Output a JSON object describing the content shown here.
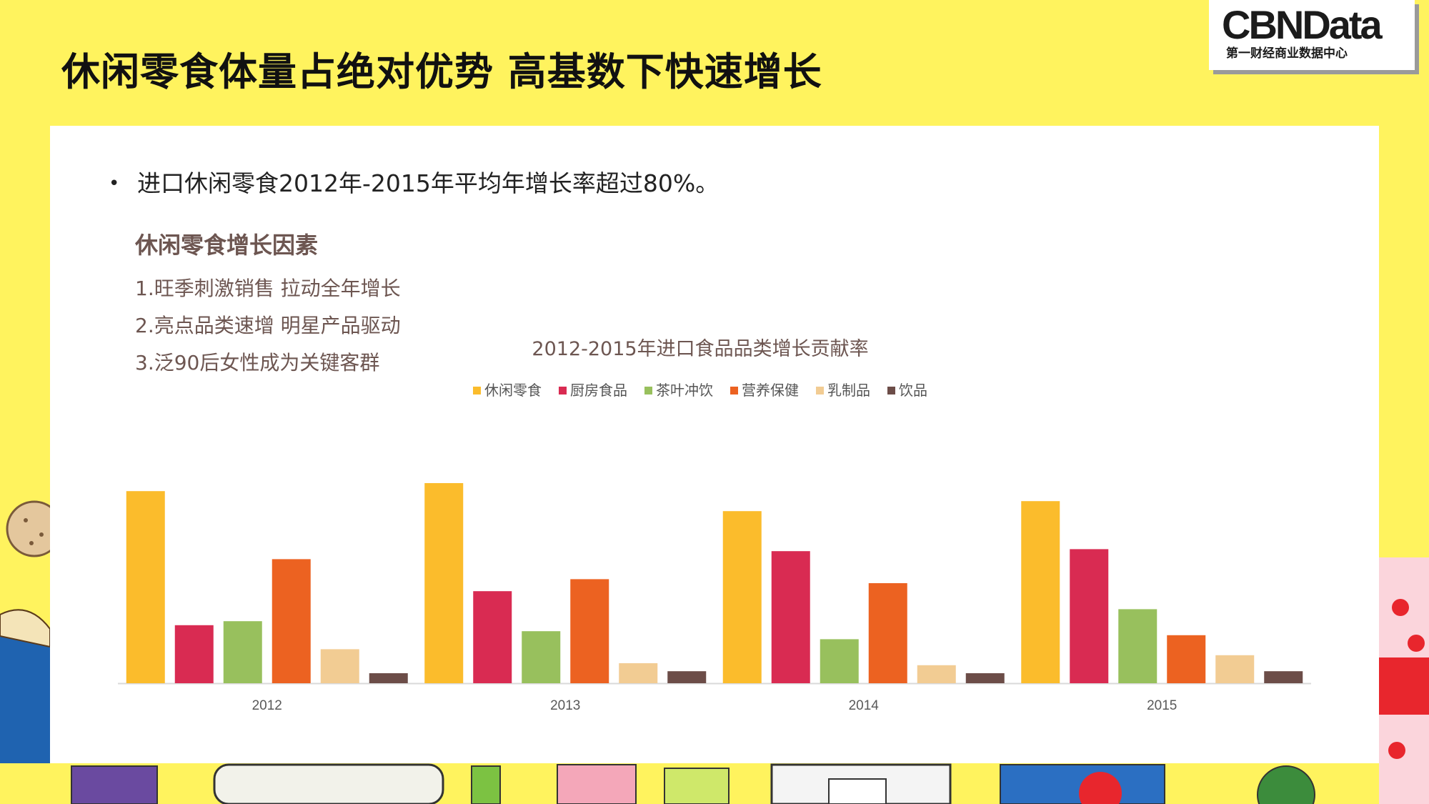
{
  "header": {
    "title": "休闲零食体量占绝对优势 高基数下快速增长"
  },
  "logo": {
    "name": "CBNData",
    "subtitle": "第一财经商业数据中心"
  },
  "content": {
    "bullet": "进口休闲零食2012年-2015年平均年增长率超过80%。",
    "factors_title": "休闲零食增长因素",
    "factors": [
      "1.旺季刺激销售 拉动全年增长",
      "2.亮点品类速增 明星产品驱动",
      "3.泛90后女性成为关键客群"
    ]
  },
  "chart_data": {
    "type": "bar",
    "title": "2012-2015年进口食品品类增长贡献率",
    "categories": [
      "2012",
      "2013",
      "2014",
      "2015"
    ],
    "series": [
      {
        "name": "休闲零食",
        "color": "#fbbc2c",
        "values": [
          96,
          100,
          86,
          91
        ]
      },
      {
        "name": "厨房食品",
        "color": "#d92b52",
        "values": [
          29,
          46,
          66,
          67
        ]
      },
      {
        "name": "茶叶冲饮",
        "color": "#98c05d",
        "values": [
          31,
          26,
          22,
          37
        ]
      },
      {
        "name": "营养保健",
        "color": "#ec6221",
        "values": [
          62,
          52,
          50,
          24
        ]
      },
      {
        "name": "乳制品",
        "color": "#f2cc93",
        "values": [
          17,
          10,
          9,
          14
        ]
      },
      {
        "name": "饮品",
        "color": "#6c4d48",
        "values": [
          5,
          6,
          5,
          6
        ]
      }
    ],
    "ylim": [
      0,
      100
    ],
    "xlabel": "",
    "ylabel": "",
    "legend_position": "top",
    "grid": false
  }
}
